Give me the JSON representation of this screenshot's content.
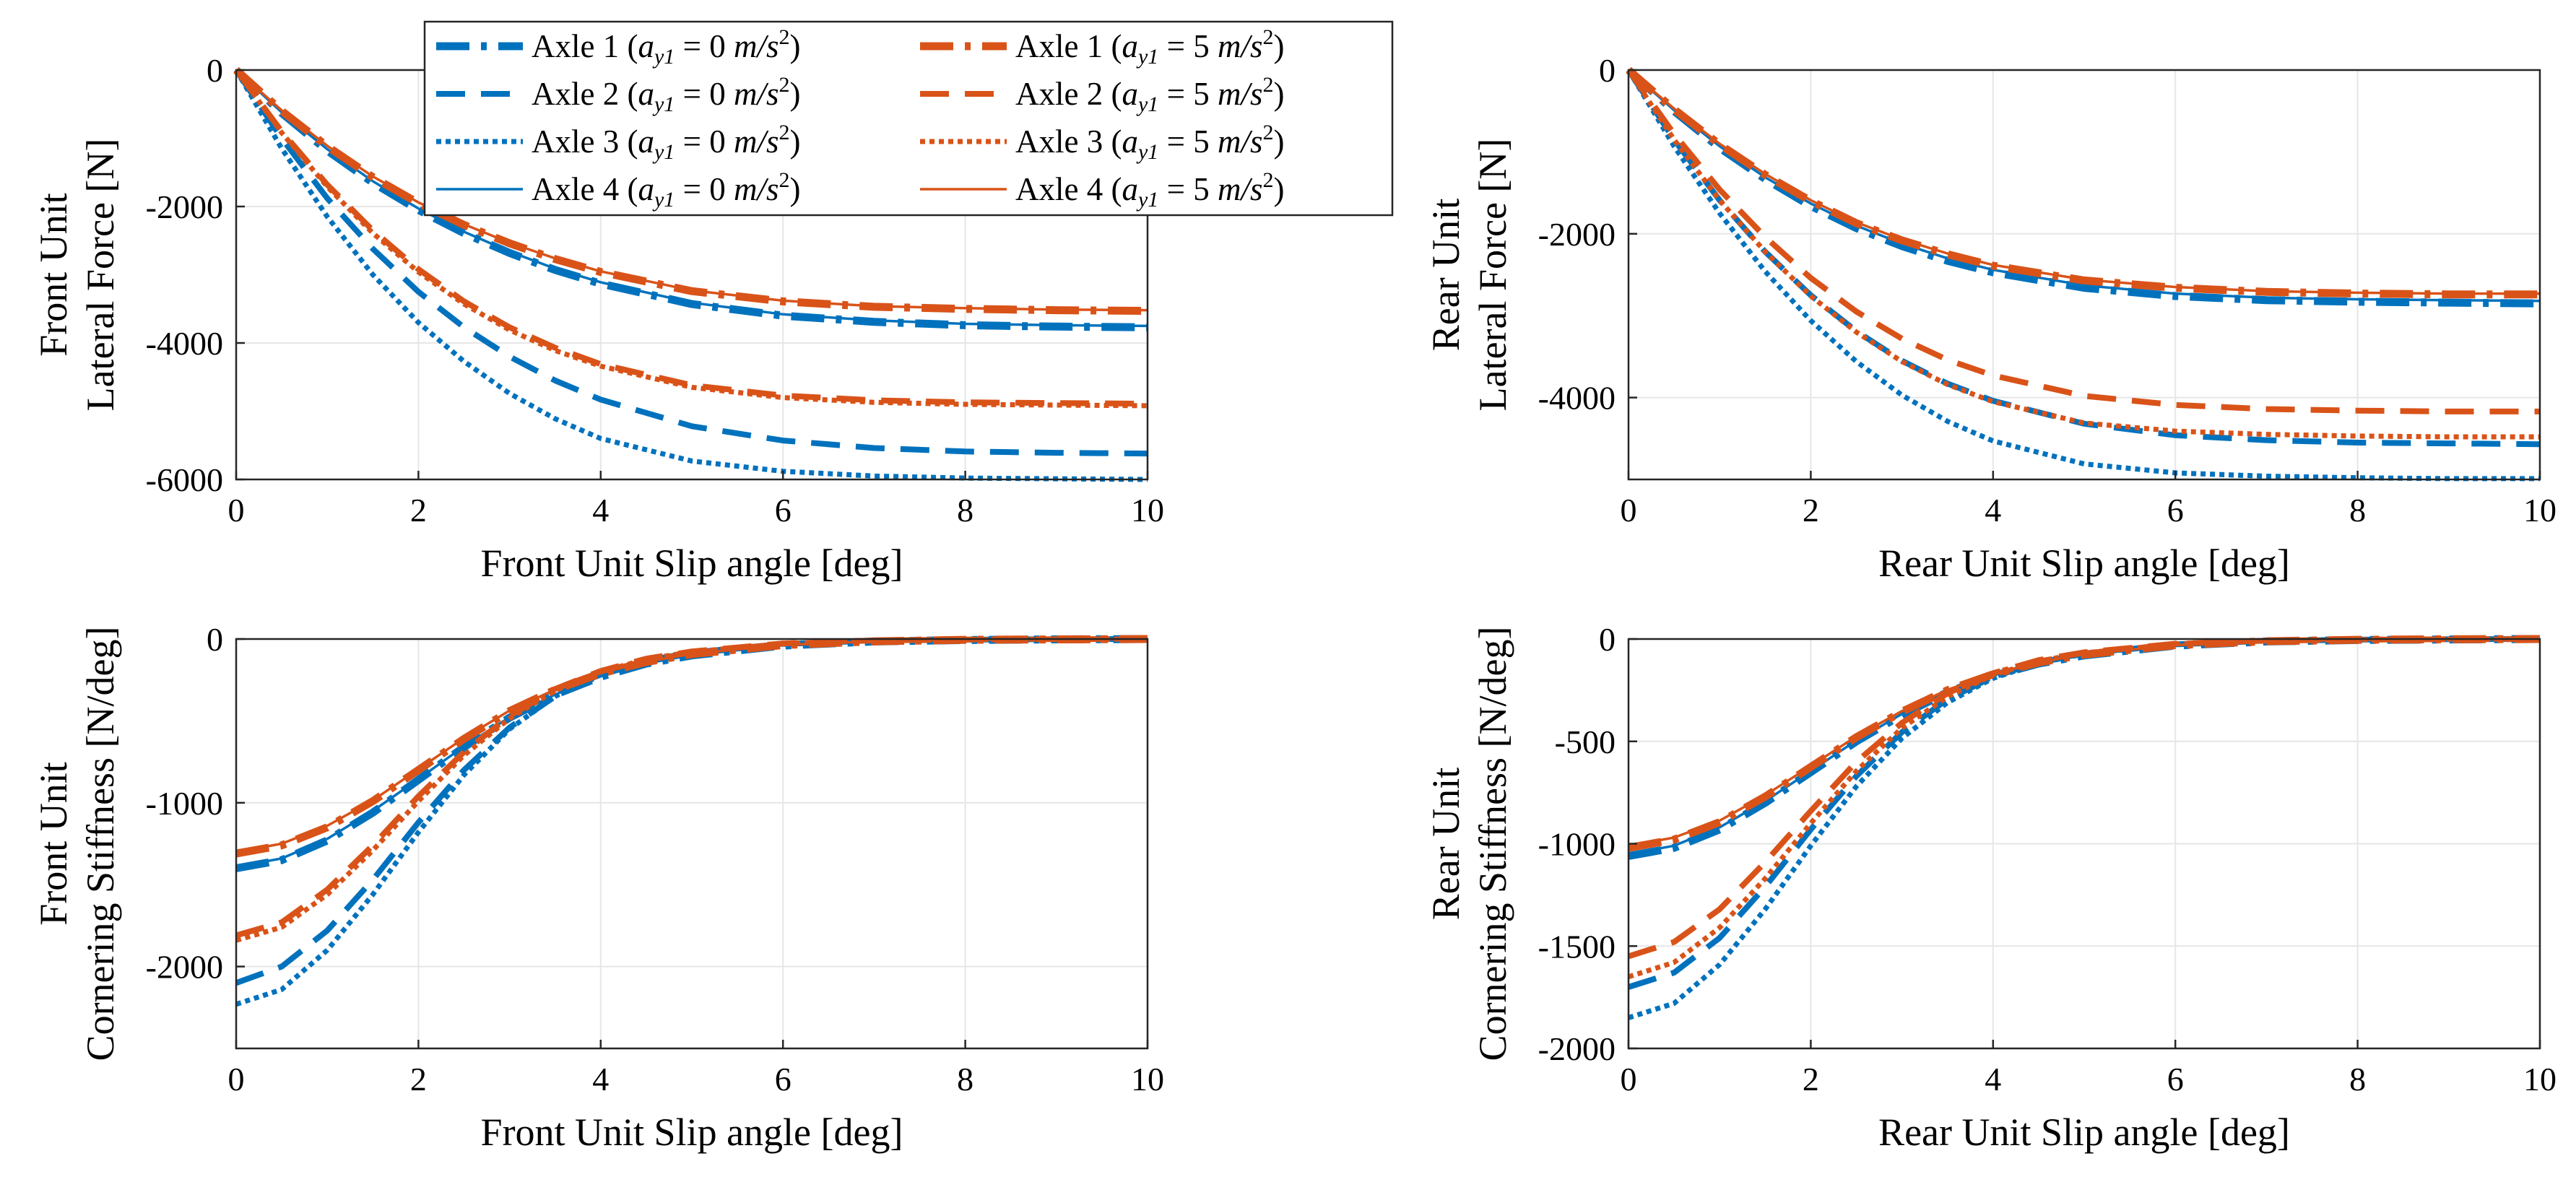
{
  "colors": {
    "blue": "#0072bd",
    "orange": "#d95319",
    "grid": "#e6e6e6"
  },
  "legend": {
    "items": [
      {
        "label": "Axle 1",
        "condition": "(ay1 = 0 m/s2)",
        "color": "#0072bd",
        "style": "dashdot",
        "weight": "thick"
      },
      {
        "label": "Axle 2",
        "condition": "(ay1 = 0 m/s2)",
        "color": "#0072bd",
        "style": "dashed",
        "weight": "medium"
      },
      {
        "label": "Axle 3",
        "condition": "(ay1 = 0 m/s2)",
        "color": "#0072bd",
        "style": "dotted",
        "weight": "medium"
      },
      {
        "label": "Axle 4",
        "condition": "(ay1 = 0 m/s2)",
        "color": "#0072bd",
        "style": "solid",
        "weight": "thin"
      },
      {
        "label": "Axle 1",
        "condition": "(ay1 = 5 m/s2)",
        "color": "#d95319",
        "style": "dashdot",
        "weight": "thick"
      },
      {
        "label": "Axle 2",
        "condition": "(ay1 = 5 m/s2)",
        "color": "#d95319",
        "style": "dashed",
        "weight": "medium"
      },
      {
        "label": "Axle 3",
        "condition": "(ay1 = 5 m/s2)",
        "color": "#d95319",
        "style": "dotted",
        "weight": "medium"
      },
      {
        "label": "Axle 4",
        "condition": "(ay1 = 5 m/s2)",
        "color": "#d95319",
        "style": "solid",
        "weight": "thin"
      }
    ]
  },
  "chart_data": [
    {
      "type": "line",
      "ylabel": [
        "Front Unit",
        "Lateral Force [N]"
      ],
      "xlabel": "Front Unit Slip angle [deg]",
      "xlim": [
        0,
        10
      ],
      "ylim": [
        -6000,
        0
      ],
      "xticks": [
        0,
        2,
        4,
        6,
        8,
        10
      ],
      "yticks": [
        0,
        -2000,
        -4000,
        -6000
      ],
      "grid": true,
      "x": [
        0,
        0.5,
        1,
        1.5,
        2,
        2.5,
        3,
        3.5,
        4,
        5,
        6,
        7,
        8,
        9,
        10
      ],
      "series": [
        {
          "name": "Axle 1 (ay1 = 0 m/s2)",
          "values": [
            0,
            -630,
            -1180,
            -1650,
            -2050,
            -2390,
            -2680,
            -2930,
            -3130,
            -3430,
            -3600,
            -3690,
            -3740,
            -3760,
            -3770
          ]
        },
        {
          "name": "Axle 2 (ay1 = 0 m/s2)",
          "values": [
            0,
            -1000,
            -1880,
            -2620,
            -3250,
            -3770,
            -4200,
            -4550,
            -4830,
            -5220,
            -5430,
            -5540,
            -5590,
            -5610,
            -5620
          ]
        },
        {
          "name": "Axle 3 (ay1 = 0 m/s2)",
          "values": [
            0,
            -1150,
            -2150,
            -3000,
            -3700,
            -4270,
            -4740,
            -5110,
            -5400,
            -5730,
            -5880,
            -5950,
            -5980,
            -5990,
            -6000
          ]
        },
        {
          "name": "Axle 4 (ay1 = 0 m/s2)",
          "values": [
            0,
            -620,
            -1160,
            -1630,
            -2030,
            -2370,
            -2660,
            -2910,
            -3110,
            -3410,
            -3580,
            -3670,
            -3720,
            -3740,
            -3750
          ]
        },
        {
          "name": "Axle 1 (ay1 = 5 m/s2)",
          "values": [
            0,
            -600,
            -1120,
            -1570,
            -1950,
            -2270,
            -2540,
            -2770,
            -2960,
            -3240,
            -3390,
            -3470,
            -3500,
            -3520,
            -3530
          ]
        },
        {
          "name": "Axle 2 (ay1 = 5 m/s2)",
          "values": [
            0,
            -900,
            -1680,
            -2350,
            -2920,
            -3390,
            -3770,
            -4070,
            -4310,
            -4620,
            -4770,
            -4840,
            -4870,
            -4880,
            -4890
          ]
        },
        {
          "name": "Axle 3 (ay1 = 5 m/s2)",
          "values": [
            0,
            -920,
            -1710,
            -2390,
            -2960,
            -3430,
            -3810,
            -4110,
            -4340,
            -4650,
            -4800,
            -4870,
            -4900,
            -4910,
            -4920
          ]
        },
        {
          "name": "Axle 4 (ay1 = 5 m/s2)",
          "values": [
            0,
            -590,
            -1110,
            -1560,
            -1940,
            -2260,
            -2530,
            -2760,
            -2950,
            -3230,
            -3380,
            -3460,
            -3490,
            -3510,
            -3520
          ]
        }
      ]
    },
    {
      "type": "line",
      "ylabel": [
        "Rear Unit",
        "Lateral Force [N]"
      ],
      "xlabel": "Rear Unit Slip angle [deg]",
      "xlim": [
        0,
        10
      ],
      "ylim": [
        -5000,
        0
      ],
      "xticks": [
        0,
        2,
        4,
        6,
        8,
        10
      ],
      "yticks": [
        0,
        -2000,
        -4000
      ],
      "grid": true,
      "x": [
        0,
        0.5,
        1,
        1.5,
        2,
        2.5,
        3,
        3.5,
        4,
        5,
        6,
        7,
        8,
        9,
        10
      ],
      "series": [
        {
          "name": "Axle 1 (ay1 = 0 m/s2)",
          "values": [
            0,
            -500,
            -950,
            -1330,
            -1660,
            -1930,
            -2150,
            -2330,
            -2470,
            -2660,
            -2760,
            -2810,
            -2830,
            -2840,
            -2850
          ]
        },
        {
          "name": "Axle 2 (ay1 = 0 m/s2)",
          "values": [
            0,
            -850,
            -1590,
            -2220,
            -2750,
            -3190,
            -3550,
            -3830,
            -4040,
            -4320,
            -4460,
            -4520,
            -4550,
            -4560,
            -4570
          ]
        },
        {
          "name": "Axle 3 (ay1 = 0 m/s2)",
          "values": [
            0,
            -930,
            -1750,
            -2460,
            -3060,
            -3560,
            -3970,
            -4290,
            -4530,
            -4810,
            -4920,
            -4960,
            -4980,
            -4990,
            -4990
          ]
        },
        {
          "name": "Axle 4 (ay1 = 0 m/s2)",
          "values": [
            0,
            -490,
            -930,
            -1310,
            -1630,
            -1900,
            -2120,
            -2300,
            -2440,
            -2630,
            -2730,
            -2780,
            -2800,
            -2810,
            -2820
          ]
        },
        {
          "name": "Axle 1 (ay1 = 5 m/s2)",
          "values": [
            0,
            -480,
            -910,
            -1280,
            -1600,
            -1870,
            -2080,
            -2250,
            -2390,
            -2570,
            -2660,
            -2710,
            -2730,
            -2740,
            -2740
          ]
        },
        {
          "name": "Axle 2 (ay1 = 5 m/s2)",
          "values": [
            0,
            -780,
            -1460,
            -2040,
            -2540,
            -2950,
            -3280,
            -3540,
            -3730,
            -3980,
            -4090,
            -4140,
            -4160,
            -4170,
            -4170
          ]
        },
        {
          "name": "Axle 3 (ay1 = 5 m/s2)",
          "values": [
            0,
            -850,
            -1590,
            -2220,
            -2760,
            -3200,
            -3560,
            -3840,
            -4050,
            -4310,
            -4410,
            -4450,
            -4470,
            -4480,
            -4480
          ]
        },
        {
          "name": "Axle 4 (ay1 = 5 m/s2)",
          "values": [
            0,
            -470,
            -900,
            -1270,
            -1590,
            -1860,
            -2070,
            -2240,
            -2380,
            -2560,
            -2650,
            -2700,
            -2720,
            -2730,
            -2730
          ]
        }
      ]
    },
    {
      "type": "line",
      "ylabel": [
        "Front Unit",
        "Cornering Stiffness [N/deg]"
      ],
      "xlabel": "Front Unit Slip angle [deg]",
      "xlim": [
        0,
        10
      ],
      "ylim": [
        -2500,
        0
      ],
      "xticks": [
        0,
        2,
        4,
        6,
        8,
        10
      ],
      "yticks": [
        0,
        -1000,
        -2000
      ],
      "grid": true,
      "x": [
        0,
        0.5,
        1,
        1.5,
        2,
        2.5,
        3,
        3.5,
        4,
        4.5,
        5,
        6,
        7,
        8,
        9,
        10
      ],
      "series": [
        {
          "name": "Axle 1 (ay1 = 0 m/s2)",
          "values": [
            -1400,
            -1350,
            -1230,
            -1060,
            -860,
            -660,
            -480,
            -340,
            -230,
            -150,
            -100,
            -40,
            -15,
            -6,
            -2,
            0
          ]
        },
        {
          "name": "Axle 2 (ay1 = 0 m/s2)",
          "values": [
            -2100,
            -2000,
            -1780,
            -1470,
            -1120,
            -800,
            -540,
            -350,
            -220,
            -135,
            -85,
            -30,
            -10,
            -4,
            -1,
            0
          ]
        },
        {
          "name": "Axle 3 (ay1 = 0 m/s2)",
          "values": [
            -2230,
            -2140,
            -1900,
            -1560,
            -1180,
            -830,
            -550,
            -350,
            -215,
            -130,
            -80,
            -28,
            -9,
            -3,
            -1,
            0
          ]
        },
        {
          "name": "Axle 4 (ay1 = 0 m/s2)",
          "values": [
            -1390,
            -1340,
            -1220,
            -1050,
            -855,
            -655,
            -478,
            -338,
            -228,
            -149,
            -98,
            -39,
            -15,
            -6,
            -2,
            0
          ]
        },
        {
          "name": "Axle 1 (ay1 = 5 m/s2)",
          "values": [
            -1310,
            -1260,
            -1150,
            -990,
            -800,
            -610,
            -440,
            -310,
            -210,
            -140,
            -92,
            -37,
            -14,
            -5,
            -2,
            0
          ]
        },
        {
          "name": "Axle 2 (ay1 = 5 m/s2)",
          "values": [
            -1810,
            -1730,
            -1530,
            -1260,
            -960,
            -690,
            -470,
            -305,
            -195,
            -120,
            -76,
            -27,
            -9,
            -3,
            -1,
            0
          ]
        },
        {
          "name": "Axle 3 (ay1 = 5 m/s2)",
          "values": [
            -1840,
            -1760,
            -1560,
            -1290,
            -990,
            -710,
            -485,
            -315,
            -200,
            -123,
            -78,
            -28,
            -9,
            -3,
            -1,
            0
          ]
        },
        {
          "name": "Axle 4 (ay1 = 5 m/s2)",
          "values": [
            -1300,
            -1250,
            -1140,
            -985,
            -795,
            -605,
            -437,
            -308,
            -208,
            -139,
            -91,
            -36,
            -14,
            -5,
            -2,
            0
          ]
        }
      ]
    },
    {
      "type": "line",
      "ylabel": [
        "Rear Unit",
        "Cornering Stiffness [N/deg]"
      ],
      "xlabel": "Rear Unit Slip angle [deg]",
      "xlim": [
        0,
        10
      ],
      "ylim": [
        -2000,
        0
      ],
      "xticks": [
        0,
        2,
        4,
        6,
        8,
        10
      ],
      "yticks": [
        0,
        -500,
        -1000,
        -1500,
        -2000
      ],
      "grid": true,
      "x": [
        0,
        0.5,
        1,
        1.5,
        2,
        2.5,
        3,
        3.5,
        4,
        4.5,
        5,
        6,
        7,
        8,
        9,
        10
      ],
      "series": [
        {
          "name": "Axle 1 (ay1 = 0 m/s2)",
          "values": [
            -1060,
            -1020,
            -930,
            -800,
            -650,
            -500,
            -370,
            -260,
            -180,
            -120,
            -80,
            -32,
            -12,
            -5,
            -2,
            0
          ]
        },
        {
          "name": "Axle 2 (ay1 = 0 m/s2)",
          "values": [
            -1700,
            -1630,
            -1460,
            -1210,
            -930,
            -670,
            -455,
            -295,
            -185,
            -115,
            -72,
            -26,
            -9,
            -3,
            -1,
            0
          ]
        },
        {
          "name": "Axle 3 (ay1 = 0 m/s2)",
          "values": [
            -1850,
            -1780,
            -1590,
            -1320,
            -1010,
            -720,
            -485,
            -310,
            -192,
            -118,
            -73,
            -26,
            -9,
            -3,
            -1,
            0
          ]
        },
        {
          "name": "Axle 4 (ay1 = 0 m/s2)",
          "values": [
            -1050,
            -1010,
            -920,
            -792,
            -644,
            -496,
            -366,
            -258,
            -178,
            -119,
            -79,
            -31,
            -12,
            -5,
            -2,
            0
          ]
        },
        {
          "name": "Axle 1 (ay1 = 5 m/s2)",
          "values": [
            -1020,
            -980,
            -895,
            -770,
            -625,
            -480,
            -355,
            -250,
            -172,
            -115,
            -76,
            -30,
            -11,
            -4,
            -1,
            0
          ]
        },
        {
          "name": "Axle 2 (ay1 = 5 m/s2)",
          "values": [
            -1550,
            -1480,
            -1320,
            -1090,
            -840,
            -600,
            -410,
            -265,
            -167,
            -103,
            -65,
            -23,
            -8,
            -3,
            -1,
            0
          ]
        },
        {
          "name": "Axle 3 (ay1 = 5 m/s2)",
          "values": [
            -1650,
            -1580,
            -1410,
            -1170,
            -900,
            -645,
            -435,
            -282,
            -176,
            -108,
            -68,
            -24,
            -8,
            -3,
            -1,
            0
          ]
        },
        {
          "name": "Axle 4 (ay1 = 5 m/s2)",
          "values": [
            -1010,
            -970,
            -887,
            -763,
            -620,
            -476,
            -352,
            -248,
            -171,
            -114,
            -75,
            -30,
            -11,
            -4,
            -1,
            0
          ]
        }
      ]
    }
  ]
}
